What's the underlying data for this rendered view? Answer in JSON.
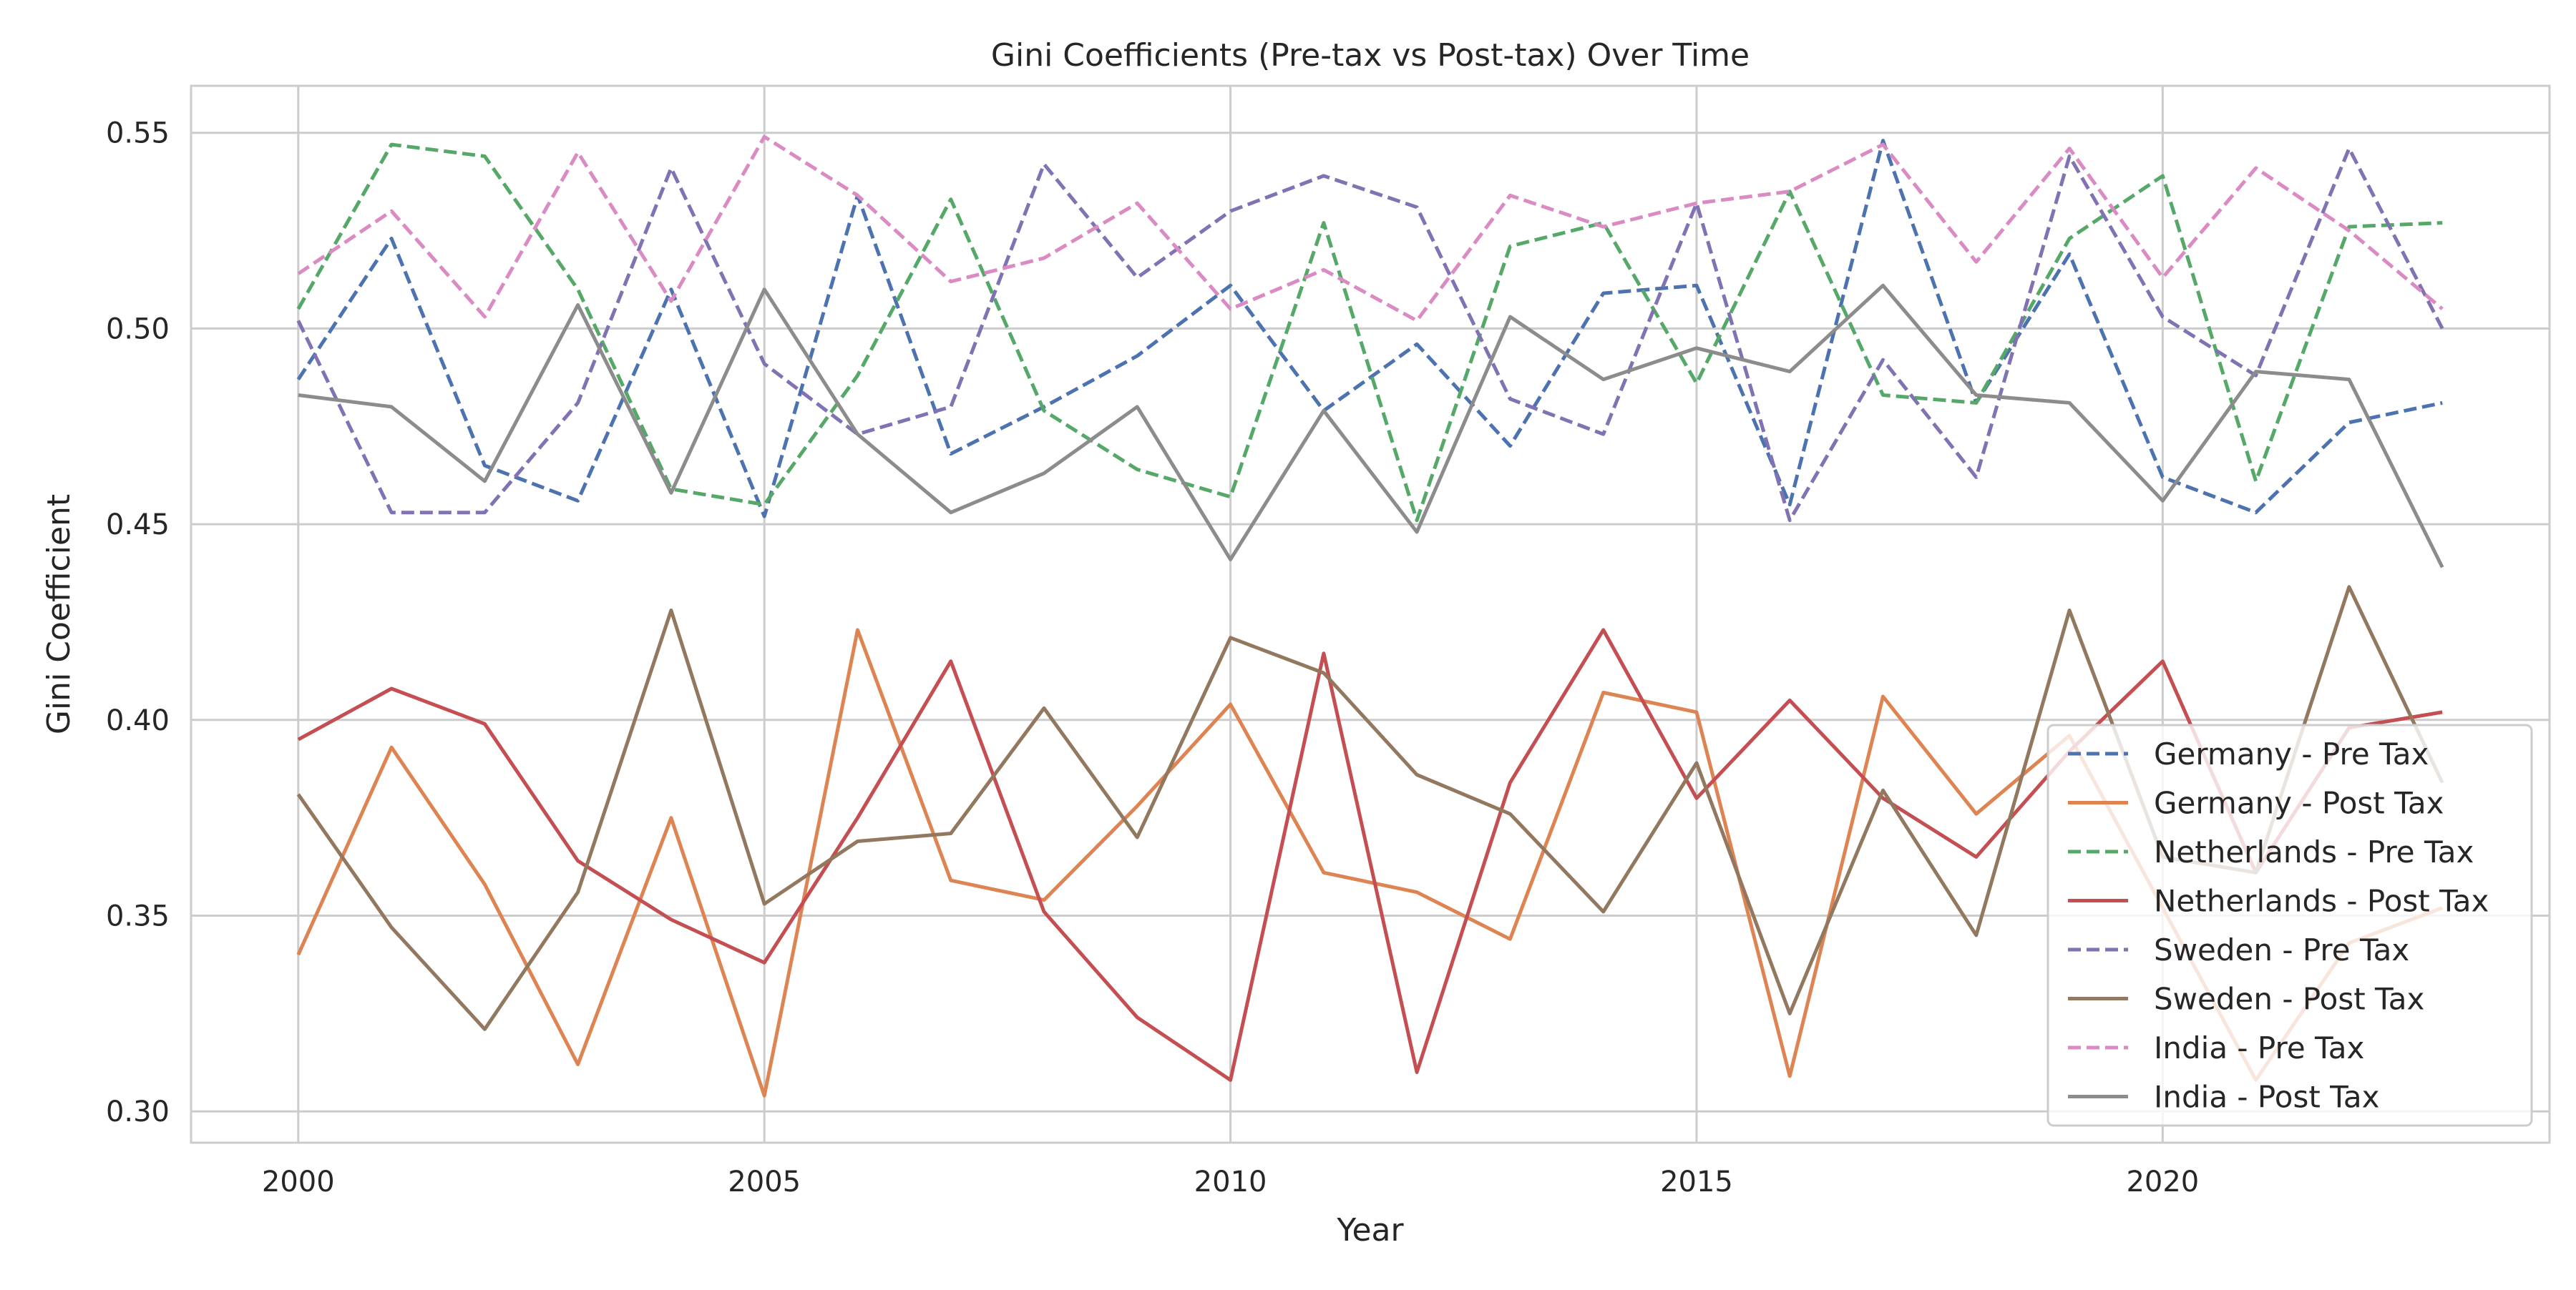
{
  "chart_data": {
    "type": "line",
    "title": "Gini Coefficients (Pre-tax vs Post-tax) Over Time",
    "xlabel": "Year",
    "ylabel": "Gini Coefficient",
    "xlim": [
      1998.85,
      2024.15
    ],
    "ylim": [
      0.292,
      0.562
    ],
    "x_ticks": [
      2000,
      2005,
      2010,
      2015,
      2020
    ],
    "y_ticks": [
      0.3,
      0.35,
      0.4,
      0.45,
      0.5,
      0.55
    ],
    "y_tick_labels": [
      "0.30",
      "0.35",
      "0.40",
      "0.45",
      "0.50",
      "0.55"
    ],
    "grid": true,
    "legend_position": "lower-right",
    "x": [
      2000,
      2001,
      2002,
      2003,
      2004,
      2005,
      2006,
      2007,
      2008,
      2009,
      2010,
      2011,
      2012,
      2013,
      2014,
      2015,
      2016,
      2017,
      2018,
      2019,
      2020,
      2021,
      2022,
      2023
    ],
    "series": [
      {
        "name": "Germany - Pre Tax",
        "color": "#4c72b0",
        "dashed": true,
        "values": [
          0.487,
          0.523,
          0.465,
          0.456,
          0.51,
          0.452,
          0.534,
          0.468,
          0.48,
          0.493,
          0.511,
          0.479,
          0.496,
          0.47,
          0.509,
          0.511,
          0.455,
          0.548,
          0.481,
          0.519,
          0.462,
          0.453,
          0.476,
          0.481
        ]
      },
      {
        "name": "Germany - Post Tax",
        "color": "#dd8452",
        "dashed": false,
        "values": [
          0.34,
          0.393,
          0.358,
          0.312,
          0.375,
          0.304,
          0.423,
          0.359,
          0.354,
          0.378,
          0.404,
          0.361,
          0.356,
          0.344,
          0.407,
          0.402,
          0.309,
          0.406,
          0.376,
          0.396,
          0.352,
          0.308,
          0.343,
          0.352
        ]
      },
      {
        "name": "Netherlands - Pre Tax",
        "color": "#55a868",
        "dashed": true,
        "values": [
          0.505,
          0.547,
          0.544,
          0.51,
          0.459,
          0.455,
          0.488,
          0.533,
          0.479,
          0.464,
          0.457,
          0.527,
          0.451,
          0.521,
          0.527,
          0.486,
          0.535,
          0.483,
          0.481,
          0.523,
          0.539,
          0.461,
          0.526,
          0.527
        ]
      },
      {
        "name": "Netherlands - Post Tax",
        "color": "#c44e52",
        "dashed": false,
        "values": [
          0.395,
          0.408,
          0.399,
          0.364,
          0.349,
          0.338,
          0.375,
          0.415,
          0.351,
          0.324,
          0.308,
          0.417,
          0.31,
          0.384,
          0.423,
          0.38,
          0.405,
          0.38,
          0.365,
          0.392,
          0.415,
          0.361,
          0.398,
          0.402
        ]
      },
      {
        "name": "Sweden - Pre Tax",
        "color": "#8172b3",
        "dashed": true,
        "values": [
          0.502,
          0.453,
          0.453,
          0.481,
          0.541,
          0.491,
          0.473,
          0.48,
          0.542,
          0.513,
          0.53,
          0.539,
          0.531,
          0.482,
          0.473,
          0.532,
          0.451,
          0.492,
          0.462,
          0.544,
          0.503,
          0.488,
          0.546,
          0.5
        ]
      },
      {
        "name": "Sweden - Post Tax",
        "color": "#937860",
        "dashed": false,
        "values": [
          0.381,
          0.347,
          0.321,
          0.356,
          0.428,
          0.353,
          0.369,
          0.371,
          0.403,
          0.37,
          0.421,
          0.412,
          0.386,
          0.376,
          0.351,
          0.389,
          0.325,
          0.382,
          0.345,
          0.428,
          0.365,
          0.361,
          0.434,
          0.384
        ]
      },
      {
        "name": "India - Pre Tax",
        "color": "#da8bc3",
        "dashed": true,
        "values": [
          0.514,
          0.53,
          0.503,
          0.545,
          0.507,
          0.549,
          0.534,
          0.512,
          0.518,
          0.532,
          0.505,
          0.515,
          0.502,
          0.534,
          0.526,
          0.532,
          0.535,
          0.547,
          0.517,
          0.546,
          0.513,
          0.541,
          0.525,
          0.505
        ]
      },
      {
        "name": "India - Post Tax",
        "color": "#8c8c8c",
        "dashed": false,
        "values": [
          0.483,
          0.48,
          0.461,
          0.506,
          0.458,
          0.51,
          0.473,
          0.453,
          0.463,
          0.48,
          0.441,
          0.479,
          0.448,
          0.503,
          0.487,
          0.495,
          0.489,
          0.511,
          0.483,
          0.481,
          0.456,
          0.489,
          0.487,
          0.439
        ]
      }
    ]
  }
}
